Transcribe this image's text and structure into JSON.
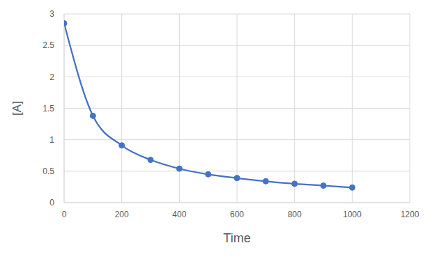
{
  "chart_data": {
    "type": "line",
    "x_label": "Time",
    "y_label": "[A]",
    "x": [
      0,
      100,
      200,
      300,
      400,
      500,
      600,
      700,
      800,
      900,
      1000
    ],
    "values": [
      2.85,
      1.38,
      0.91,
      0.68,
      0.54,
      0.45,
      0.39,
      0.34,
      0.3,
      0.27,
      0.24
    ],
    "color": "#4472c4",
    "marker": "circle",
    "line_style": "smooth",
    "xlim": [
      0,
      1200
    ],
    "xticks": [
      0,
      200,
      400,
      600,
      800,
      1000,
      1200
    ],
    "ylim": [
      0,
      3
    ],
    "yticks": [
      0,
      0.5,
      1,
      1.5,
      2,
      2.5,
      3
    ],
    "grid": true
  }
}
